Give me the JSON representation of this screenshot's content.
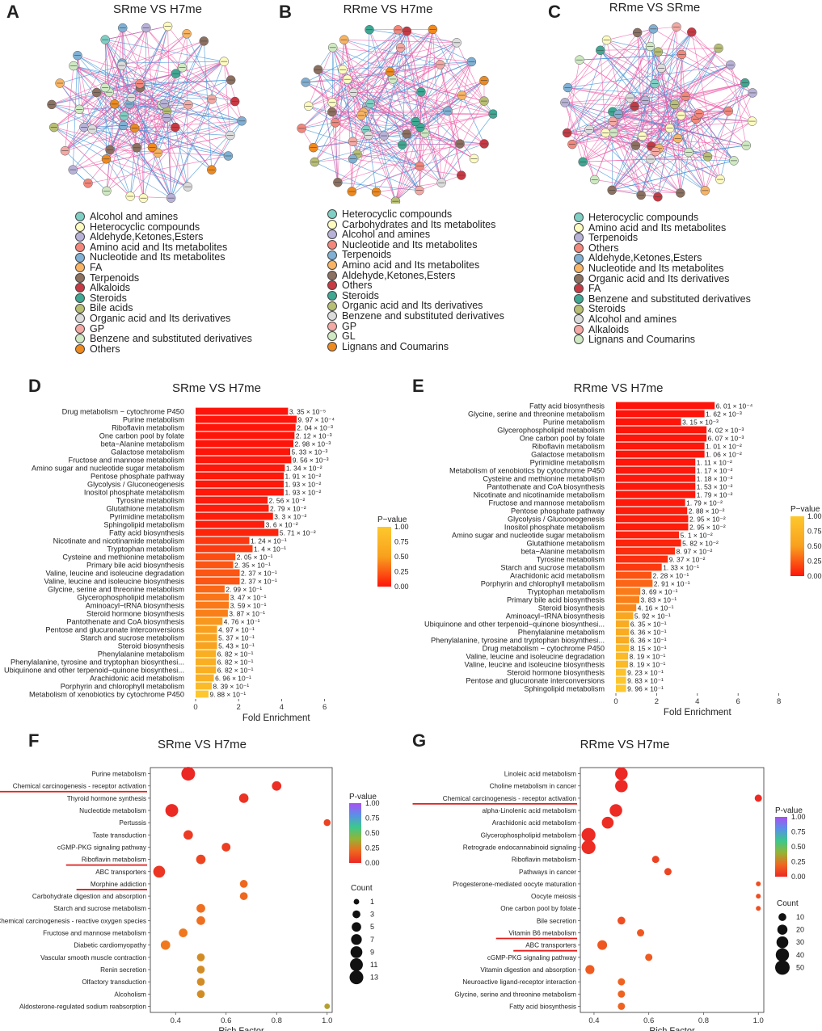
{
  "panels": {
    "A": {
      "letter": "A",
      "title": "SRme VS H7me",
      "seed": 11,
      "legend": [
        {
          "label": "Alcohol and amines",
          "color": "#7fcfc4"
        },
        {
          "label": "Heterocyclic compounds",
          "color": "#fdfbbf"
        },
        {
          "label": "Aldehyde,Ketones,Esters",
          "color": "#b8b2d8"
        },
        {
          "label": "Amino acid and Its metabolites",
          "color": "#f4877c"
        },
        {
          "label": "Nucleotide and Its metabolites",
          "color": "#80b0d4"
        },
        {
          "label": "FA",
          "color": "#f9b463"
        },
        {
          "label": "Terpenoids",
          "color": "#8c7060"
        },
        {
          "label": "Alkaloids",
          "color": "#c73a44"
        },
        {
          "label": "Steroids",
          "color": "#3fa893"
        },
        {
          "label": "Bile acids",
          "color": "#b8bf73"
        },
        {
          "label": "Organic acid and Its derivatives",
          "color": "#dcdcdc"
        },
        {
          "label": "GP",
          "color": "#f4a9a4"
        },
        {
          "label": "Benzene and substituted derivatives",
          "color": "#cfeac3"
        },
        {
          "label": "Others",
          "color": "#ef8a1e"
        }
      ]
    },
    "B": {
      "letter": "B",
      "title": "RRme VS H7me",
      "seed": 23,
      "legend": [
        {
          "label": "Heterocyclic compounds",
          "color": "#7fcfc4"
        },
        {
          "label": "Carbohydrates and Its metabolites",
          "color": "#fdfbbf"
        },
        {
          "label": "Alcohol and amines",
          "color": "#b8b2d8"
        },
        {
          "label": "Nucleotide and Its metabolites",
          "color": "#f4877c"
        },
        {
          "label": "Terpenoids",
          "color": "#80b0d4"
        },
        {
          "label": "Amino acid and Its metabolites",
          "color": "#f9b463"
        },
        {
          "label": "Aldehyde,Ketones,Esters",
          "color": "#8c7060"
        },
        {
          "label": "Others",
          "color": "#c73a44"
        },
        {
          "label": "Steroids",
          "color": "#3fa893"
        },
        {
          "label": "Organic acid and Its derivatives",
          "color": "#b8bf73"
        },
        {
          "label": "Benzene and substituted derivatives",
          "color": "#dcdcdc"
        },
        {
          "label": "GP",
          "color": "#f4a9a4"
        },
        {
          "label": "GL",
          "color": "#cfeac3"
        },
        {
          "label": "Lignans and Coumarins",
          "color": "#ef8a1e"
        }
      ]
    },
    "C": {
      "letter": "C",
      "title": "RRme VS SRme",
      "seed": 37,
      "legend": [
        {
          "label": "Heterocyclic compounds",
          "color": "#7fcfc4"
        },
        {
          "label": "Amino acid and Its metabolites",
          "color": "#fdfbbf"
        },
        {
          "label": "Terpenoids",
          "color": "#b8b2d8"
        },
        {
          "label": "Others",
          "color": "#f4877c"
        },
        {
          "label": "Aldehyde,Ketones,Esters",
          "color": "#80b0d4"
        },
        {
          "label": "Nucleotide and Its metabolites",
          "color": "#f9b463"
        },
        {
          "label": "Organic acid and Its derivatives",
          "color": "#8c7060"
        },
        {
          "label": "FA",
          "color": "#c73a44"
        },
        {
          "label": "Benzene and substituted derivatives",
          "color": "#3fa893"
        },
        {
          "label": "Steroids",
          "color": "#b8bf73"
        },
        {
          "label": "Alcohol and amines",
          "color": "#dcdcdc"
        },
        {
          "label": "Alkaloids",
          "color": "#f4a9a4"
        },
        {
          "label": "Lignans and Coumarins",
          "color": "#cfeac3"
        }
      ]
    }
  },
  "chart_data": [
    {
      "id": "D",
      "letter": "D",
      "type": "bar",
      "title": "SRme VS H7me",
      "xlabel": "Fold Enrichment",
      "xlim": [
        0,
        7.5
      ],
      "xticks": [
        0,
        2,
        4,
        6
      ],
      "legend_title": "P−value",
      "legend_ticks": [
        "1.00",
        "0.75",
        "0.50",
        "0.25",
        "0.00"
      ],
      "categories": [
        "Drug metabolism − cytochrome P450",
        "Purine metabolism",
        "Riboflavin metabolism",
        "One carbon pool by folate",
        "beta−Alanine metabolism",
        "Galactose metabolism",
        "Fructose and mannose metabolism",
        "Amino sugar and nucleotide sugar metabolism",
        "Pentose phosphate pathway",
        "Glycolysis / Gluconeogenesis",
        "Inositol phosphate metabolism",
        "Tyrosine metabolism",
        "Glutathione metabolism",
        "Pyrimidine metabolism",
        "Sphingolipid metabolism",
        "Fatty acid biosynthesis",
        "Nicotinate and nicotinamide metabolism",
        "Tryptophan metabolism",
        "Cysteine and methionine metabolism",
        "Primary bile acid biosynthesis",
        "Valine, leucine and isoleucine degradation",
        "Valine, leucine and isoleucine biosynthesis",
        "Glycine, serine and threonine metabolism",
        "Glycerophospholipid metabolism",
        "Aminoacyl−tRNA biosynthesis",
        "Steroid hormone biosynthesis",
        "Pantothenate and CoA biosynthesis",
        "Pentose and glucuronate interconversions",
        "Starch and sucrose metabolism",
        "Steroid biosynthesis",
        "Phenylalanine metabolism",
        "Phenylalanine, tyrosine and tryptophan biosynthesi...",
        "Ubiquinone and other terpenoid−quinone biosynthesi...",
        "Arachidonic acid metabolism",
        "Porphyrin and chlorophyll metabolism",
        "Metabolism of xenobiotics by cytochrome P450"
      ],
      "values": [
        4.3,
        4.7,
        4.65,
        4.6,
        4.55,
        4.4,
        4.45,
        4.15,
        4.1,
        4.1,
        4.1,
        3.35,
        3.4,
        3.6,
        3.2,
        3.85,
        2.5,
        2.65,
        1.85,
        1.75,
        2.05,
        2.05,
        1.35,
        1.55,
        1.55,
        1.5,
        1.25,
        1.0,
        1.0,
        1.0,
        0.95,
        0.95,
        0.95,
        0.85,
        0.75,
        0.6
      ],
      "pvalues": [
        3.35e-05,
        0.000997,
        0.00204,
        0.00212,
        0.00298,
        0.00533,
        0.00956,
        0.0134,
        0.0191,
        0.0193,
        0.0193,
        0.0256,
        0.0279,
        0.033,
        0.036,
        0.0571,
        0.124,
        0.14,
        0.205,
        0.235,
        0.237,
        0.237,
        0.299,
        0.347,
        0.359,
        0.387,
        0.476,
        0.497,
        0.537,
        0.543,
        0.682,
        0.682,
        0.682,
        0.696,
        0.839,
        0.988
      ],
      "labels": [
        "3. 35 × 10⁻⁵",
        "9. 97 × 10⁻⁴",
        "2. 04 × 10⁻³",
        "2. 12 × 10⁻³",
        "2. 98 × 10⁻³",
        "5. 33 × 10⁻³",
        "9. 56 × 10⁻³",
        "1. 34 × 10⁻²",
        "1. 91 × 10⁻²",
        "1. 93 × 10⁻²",
        "1. 93 × 10⁻²",
        "2. 56 × 10⁻²",
        "2. 79 × 10⁻²",
        "3. 3 × 10⁻²",
        "3. 6 × 10⁻²",
        "5. 71 × 10⁻²",
        "1. 24 × 10⁻¹",
        "1. 4 × 10⁻¹",
        "2. 05 × 10⁻¹",
        "2. 35 × 10⁻¹",
        "2. 37 × 10⁻¹",
        "2. 37 × 10⁻¹",
        "2. 99 × 10⁻¹",
        "3. 47 × 10⁻¹",
        "3. 59 × 10⁻¹",
        "3. 87 × 10⁻¹",
        "4. 76 × 10⁻¹",
        "4. 97 × 10⁻¹",
        "5. 37 × 10⁻¹",
        "5. 43 × 10⁻¹",
        "6. 82 × 10⁻¹",
        "6. 82 × 10⁻¹",
        "6. 82 × 10⁻¹",
        "6. 96 × 10⁻¹",
        "8. 39 × 10⁻¹",
        "9. 88 × 10⁻¹"
      ]
    },
    {
      "id": "E",
      "letter": "E",
      "type": "bar",
      "title": "RRme VS H7me",
      "xlabel": "Fold Enrichment",
      "xlim": [
        0,
        8
      ],
      "xticks": [
        0,
        2,
        4,
        6,
        8
      ],
      "legend_title": "P−value",
      "legend_ticks": [
        "1.00",
        "0.75",
        "0.50",
        "0.25",
        "0.00"
      ],
      "categories": [
        "Fatty acid biosynthesis",
        "Glycine, serine and threonine metabolism",
        "Purine metabolism",
        "Glycerophospholipid metabolism",
        "One carbon pool by folate",
        "Riboflavin metabolism",
        "Galactose metabolism",
        "Pyrimidine metabolism",
        "Metabolism of xenobiotics by cytochrome P450",
        "Cysteine and methionine metabolism",
        "Pantothenate and CoA biosynthesis",
        "Nicotinate and nicotinamide metabolism",
        "Fructose and mannose metabolism",
        "Pentose phosphate pathway",
        "Glycolysis / Gluconeogenesis",
        "Inositol phosphate metabolism",
        "Amino sugar and nucleotide sugar metabolism",
        "Glutathione metabolism",
        "beta−Alanine metabolism",
        "Tyrosine metabolism",
        "Starch and sucrose metabolism",
        "Arachidonic acid metabolism",
        "Porphyrin and chlorophyll metabolism",
        "Tryptophan metabolism",
        "Primary bile acid biosynthesis",
        "Steroid biosynthesis",
        "Aminoacyl−tRNA biosynthesis",
        "Ubiquinone and other terpenoid−quinone biosynthesi...",
        "Phenylalanine metabolism",
        "Phenylalanine, tyrosine and tryptophan biosynthesi...",
        "Drug metabolism − cytochrome P450",
        "Valine, leucine and isoleucine degradation",
        "Valine, leucine and isoleucine biosynthesis",
        "Steroid hormone biosynthesis",
        "Pentose and glucuronate interconversions",
        "Sphingolipid metabolism"
      ],
      "values": [
        4.85,
        4.35,
        3.2,
        4.45,
        4.45,
        4.35,
        4.35,
        3.9,
        3.9,
        3.9,
        3.9,
        3.9,
        3.4,
        3.5,
        3.55,
        3.55,
        3.1,
        3.2,
        2.9,
        2.55,
        2.25,
        1.75,
        1.8,
        1.2,
        1.15,
        1.0,
        0.85,
        0.65,
        0.65,
        0.65,
        0.65,
        0.6,
        0.6,
        0.5,
        0.5,
        0.5
      ],
      "pvalues": [
        0.000601,
        0.00162,
        0.00315,
        0.00402,
        0.00607,
        0.0101,
        0.0106,
        0.0111,
        0.0117,
        0.0118,
        0.0153,
        0.0179,
        0.0179,
        0.0288,
        0.0295,
        0.0295,
        0.051,
        0.0582,
        0.0897,
        0.0937,
        0.133,
        0.228,
        0.291,
        0.369,
        0.383,
        0.416,
        0.592,
        0.635,
        0.636,
        0.636,
        0.815,
        0.819,
        0.819,
        0.923,
        0.983,
        0.996
      ],
      "labels": [
        "6. 01 × 10⁻⁴",
        "1. 62 × 10⁻³",
        "3. 15 × 10⁻³",
        "4. 02 × 10⁻³",
        "6. 07 × 10⁻³",
        "1. 01 × 10⁻²",
        "1. 06 × 10⁻²",
        "1. 11 × 10⁻²",
        "1. 17 × 10⁻²",
        "1. 18 × 10⁻²",
        "1. 53 × 10⁻²",
        "1. 79 × 10⁻²",
        "1. 79 × 10⁻²",
        "2. 88 × 10⁻²",
        "2. 95 × 10⁻²",
        "2. 95 × 10⁻²",
        "5. 1 × 10⁻²",
        "5. 82 × 10⁻²",
        "8. 97 × 10⁻²",
        "9. 37 × 10⁻²",
        "1. 33 × 10⁻¹",
        "2. 28 × 10⁻¹",
        "2. 91 × 10⁻¹",
        "3. 69 × 10⁻¹",
        "3. 83 × 10⁻¹",
        "4. 16 × 10⁻¹",
        "5. 92 × 10⁻¹",
        "6. 35 × 10⁻¹",
        "6. 36 × 10⁻¹",
        "6. 36 × 10⁻¹",
        "8. 15 × 10⁻¹",
        "8. 19 × 10⁻¹",
        "8. 19 × 10⁻¹",
        "9. 23 × 10⁻¹",
        "9. 83 × 10⁻¹",
        "9. 96 × 10⁻¹"
      ]
    },
    {
      "id": "F",
      "letter": "F",
      "type": "scatter",
      "title": "SRme VS H7me",
      "xlabel": "Rich Factor",
      "xlim": [
        0.3,
        1.02
      ],
      "xticks": [
        0.4,
        0.6,
        0.8,
        1.0
      ],
      "xtick_labels": [
        "0.4",
        "0.6",
        "0.8",
        "1.0"
      ],
      "legend_title": "P-value",
      "legend_ticks": [
        "1.00",
        "0.75",
        "0.50",
        "0.25",
        "0.00"
      ],
      "count_title": "Count",
      "count_values": [
        1,
        3,
        5,
        7,
        9,
        11,
        13
      ],
      "underlined": [
        1,
        7,
        9
      ],
      "categories": [
        "Purine metabolism",
        "Chemical carcinogenesis - receptor activation",
        "Thyroid hormone synthesis",
        "Nucleotide metabolism",
        "Pertussis",
        "Taste transduction",
        "cGMP-PKG signaling pathway",
        "Riboflavin metabolism",
        "ABC transporters",
        "Morphine addiction",
        "Carbohydrate digestion and absorption",
        "Starch and sucrose metabolism",
        "Chemical carcinogenesis - reactive oxygen species",
        "Fructose and mannose metabolism",
        "Diabetic cardiomyopathy",
        "Vascular smooth muscle contraction",
        "Renin secretion",
        "Olfactory transduction",
        "Alcoholism",
        "Aldosterone-regulated sodium reabsorption"
      ],
      "x": [
        0.45,
        0.8,
        0.67,
        0.385,
        1.0,
        0.45,
        0.6,
        0.5,
        0.335,
        0.67,
        0.67,
        0.5,
        0.5,
        0.43,
        0.36,
        0.5,
        0.5,
        0.5,
        0.5,
        1.0
      ],
      "count": [
        13,
        5,
        5,
        11,
        2,
        5,
        4,
        5,
        9,
        3,
        3,
        4,
        4,
        4,
        5,
        3,
        3,
        3,
        3,
        1
      ],
      "pvalue": [
        0.001,
        0.02,
        0.03,
        0.005,
        0.08,
        0.06,
        0.07,
        0.09,
        0.04,
        0.2,
        0.2,
        0.22,
        0.22,
        0.25,
        0.25,
        0.3,
        0.3,
        0.3,
        0.3,
        0.35
      ]
    },
    {
      "id": "G",
      "letter": "G",
      "type": "scatter",
      "title": "RRme VS H7me",
      "xlabel": "Rich Factor",
      "xlim": [
        0.35,
        1.02
      ],
      "xticks": [
        0.4,
        0.6,
        0.8,
        1.0
      ],
      "xtick_labels": [
        "0.4",
        "0.6",
        "0.8",
        "1.0"
      ],
      "legend_title": "P-value",
      "legend_ticks": [
        "1.00",
        "0.75",
        "0.50",
        "0.25",
        "0.00"
      ],
      "count_title": "Count",
      "count_values": [
        10,
        20,
        30,
        40,
        50
      ],
      "underlined": [
        2,
        13,
        14
      ],
      "categories": [
        "Linoleic acid metabolism",
        "Choline metabolism in cancer",
        "Chemical carcinogenesis - receptor activation",
        "alpha-Linolenic acid metabolism",
        "Arachidonic acid metabolism",
        "Glycerophospholipid metabolism",
        "Retrograde endocannabinoid signaling",
        "Riboflavin metabolism",
        "Pathways in cancer",
        "Progesterone-mediated oocyte maturation",
        "Oocyte meiosis",
        "One carbon pool by folate",
        "Bile secretion",
        "Vitamin B6 metabolism",
        "ABC transporters",
        "cGMP-PKG signaling pathway",
        "Vitamin digestion and absorption",
        "Neuroactive ligand-receptor interaction",
        "Glycine, serine and threonine metabolism",
        "Fatty acid biosynthesis"
      ],
      "x": [
        0.5,
        0.5,
        1.0,
        0.48,
        0.45,
        0.38,
        0.38,
        0.625,
        0.67,
        1.0,
        1.0,
        1.0,
        0.5,
        0.57,
        0.43,
        0.6,
        0.385,
        0.5,
        0.5,
        0.5
      ],
      "count": [
        35,
        35,
        8,
        35,
        30,
        45,
        45,
        8,
        8,
        2,
        2,
        2,
        10,
        8,
        18,
        8,
        15,
        8,
        8,
        8
      ],
      "pvalue": [
        0.001,
        0.002,
        0.01,
        0.01,
        0.015,
        0.01,
        0.015,
        0.08,
        0.09,
        0.12,
        0.12,
        0.12,
        0.12,
        0.15,
        0.15,
        0.16,
        0.16,
        0.18,
        0.18,
        0.18
      ]
    }
  ]
}
